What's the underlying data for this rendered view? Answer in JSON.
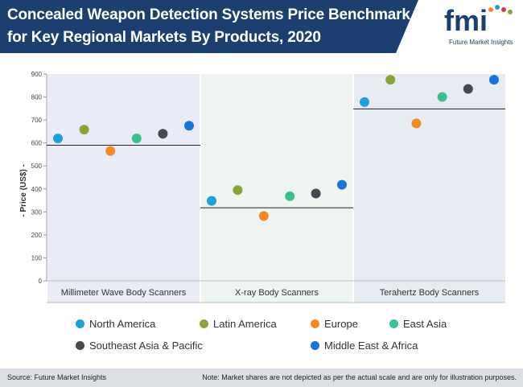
{
  "header": {
    "title_line1": "Concealed Weapon Detection Systems Price Benchmark",
    "title_line2": "for Key Regional Markets By Products, 2020",
    "logo_text": "fmi",
    "logo_subtext": "Future Market Insights"
  },
  "colors": {
    "header_bg": "#1b3f6e",
    "panel_1": "#e9ebf6",
    "panel_2": "#eef5f1",
    "panel_3": "#e7ebf2"
  },
  "chart_data": {
    "type": "scatter",
    "title": "Concealed Weapon Detection Systems Price Benchmark for Key Regional Markets By Products, 2020",
    "ylabel": "- Price (US$) -",
    "xlabel": "",
    "ylim": [
      0,
      900
    ],
    "yticks": [
      0,
      100,
      200,
      300,
      400,
      500,
      600,
      700,
      800,
      900
    ],
    "grid": false,
    "legend_position": "bottom",
    "categories": [
      "Millimeter Wave Body Scanners",
      "X-ray Body Scanners",
      "Terahertz Body Scanners"
    ],
    "benchmark_lines": [
      590,
      318,
      748
    ],
    "series": [
      {
        "name": "North America",
        "color": "#1fa0d8",
        "values": [
          620,
          348,
          778
        ]
      },
      {
        "name": "Latin America",
        "color": "#8aa537",
        "values": [
          658,
          395,
          875
        ]
      },
      {
        "name": "Europe",
        "color": "#f28a23",
        "values": [
          565,
          282,
          685
        ]
      },
      {
        "name": "East Asia",
        "color": "#3cbf8f",
        "values": [
          620,
          368,
          800
        ]
      },
      {
        "name": "Southeast Asia & Pacific",
        "color": "#444a50",
        "values": [
          640,
          380,
          835
        ]
      },
      {
        "name": "Middle East & Africa",
        "color": "#1a73d6",
        "values": [
          675,
          418,
          875
        ]
      }
    ]
  },
  "footer": {
    "source": "Source: Future Market Insights",
    "note": "Note: Market shares are not depicted as per the actual scale and are only for illustration purposes."
  }
}
